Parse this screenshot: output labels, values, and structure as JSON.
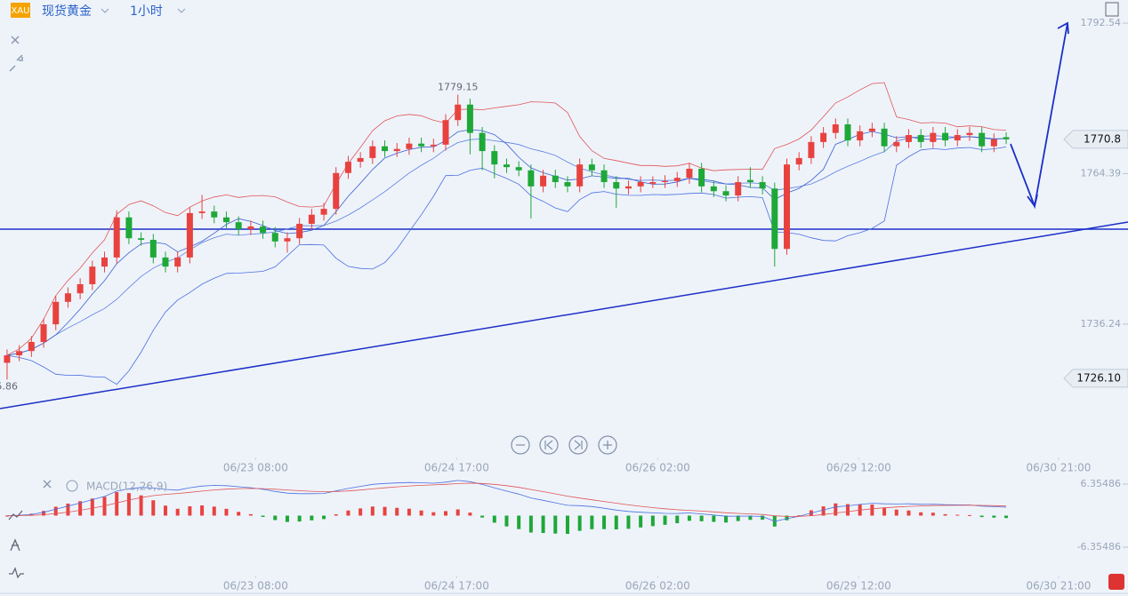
{
  "ui": {
    "symbol_badge": "XAU",
    "symbol": "现货黄金",
    "interval": "1小时"
  },
  "chart_data": {
    "type": "candlestick",
    "open": [
      1729,
      1730.4,
      1731.2,
      1732.9,
      1736.2,
      1740.4,
      1742,
      1743.7,
      1747,
      1748.7,
      1756.2,
      1752.3,
      1752,
      1748.7,
      1747,
      1748.7,
      1757,
      1757.3,
      1756.2,
      1755.3,
      1754,
      1754.5,
      1753.3,
      1751.7,
      1752.3,
      1755,
      1756.7,
      1757.8,
      1764.5,
      1766.6,
      1767.3,
      1769.5,
      1768.6,
      1769,
      1770,
      1769.5,
      1769.8,
      1774.4,
      1777.3,
      1772,
      1768.6,
      1766.1,
      1765.6,
      1765,
      1762,
      1764,
      1762.8,
      1762,
      1766.1,
      1765,
      1762.8,
      1761.6,
      1762,
      1762.5,
      1762.8,
      1763,
      1763.6,
      1765.3,
      1762,
      1761.1,
      1760.3,
      1763.2,
      1762.8,
      1761.6,
      1750.3,
      1766.1,
      1767.3,
      1770.3,
      1772,
      1773.6,
      1770.6,
      1772.3,
      1772.8,
      1769.5,
      1770.3,
      1771.6,
      1770.3,
      1772,
      1770.6,
      1771.6,
      1772,
      1769.5,
      1771.2
    ],
    "high": [
      1731.5,
      1732.3,
      1734,
      1737.3,
      1741.5,
      1743.1,
      1744.8,
      1748.1,
      1749.8,
      1757.5,
      1757.3,
      1753.4,
      1753.1,
      1749.8,
      1749.8,
      1758.1,
      1760.4,
      1758.4,
      1757.3,
      1756.4,
      1755.6,
      1755.6,
      1754.4,
      1753.4,
      1756.1,
      1757.8,
      1758.9,
      1765.6,
      1767.7,
      1768.4,
      1770.6,
      1770.6,
      1770.1,
      1771.1,
      1771.1,
      1770.9,
      1775.5,
      1779.15,
      1778.4,
      1773.1,
      1769.7,
      1767.2,
      1766.7,
      1766.1,
      1765.1,
      1765.1,
      1763.9,
      1767.2,
      1767.2,
      1766.1,
      1763.9,
      1763.1,
      1763.9,
      1763.9,
      1764.1,
      1764.7,
      1766.4,
      1766.4,
      1763.1,
      1762.2,
      1763.9,
      1765.6,
      1763.9,
      1762.7,
      1767.2,
      1768.4,
      1771.4,
      1773.1,
      1774.7,
      1774.7,
      1773.4,
      1773.9,
      1773.9,
      1771.4,
      1772.7,
      1772.7,
      1773.1,
      1773.1,
      1772.7,
      1773.1,
      1773.1,
      1771.9,
      1772.1
    ],
    "low": [
      1725.86,
      1729.3,
      1730.1,
      1731.8,
      1735.1,
      1739.3,
      1740.9,
      1742.6,
      1745.9,
      1747.6,
      1751.2,
      1750.9,
      1747.6,
      1745.9,
      1745.9,
      1747.6,
      1755.9,
      1755.1,
      1754.2,
      1752.9,
      1752.9,
      1752.2,
      1750.6,
      1749.6,
      1751.2,
      1753.9,
      1755.6,
      1756.7,
      1763.4,
      1765.5,
      1766.2,
      1767.5,
      1767.5,
      1767.9,
      1768.4,
      1768.4,
      1768.7,
      1773.3,
      1768,
      1765,
      1763.5,
      1764.5,
      1763.9,
      1756,
      1760.9,
      1761.7,
      1760.9,
      1760.9,
      1763.9,
      1761.7,
      1758,
      1760.5,
      1760.9,
      1761.7,
      1761.7,
      1761.9,
      1762.5,
      1760.9,
      1760,
      1759.2,
      1759.2,
      1761.7,
      1760.5,
      1747,
      1749.2,
      1765,
      1766.2,
      1769.2,
      1770.9,
      1769.5,
      1769.5,
      1771.2,
      1768.4,
      1768.4,
      1769.2,
      1769.2,
      1769.2,
      1769.5,
      1769.5,
      1770.5,
      1768.4,
      1768.4,
      1769.9
    ],
    "close": [
      1730.4,
      1731.2,
      1732.9,
      1736.2,
      1740.4,
      1742,
      1743.7,
      1747,
      1748.7,
      1756.2,
      1752.3,
      1752,
      1748.7,
      1747,
      1748.7,
      1757,
      1757.3,
      1756.2,
      1755.3,
      1754,
      1754.5,
      1753.3,
      1751.7,
      1752.3,
      1755,
      1756.7,
      1757.8,
      1764.5,
      1766.6,
      1767.3,
      1769.5,
      1768.6,
      1769,
      1770,
      1769.5,
      1769.8,
      1774.4,
      1777.3,
      1772,
      1768.6,
      1766.1,
      1765.6,
      1765,
      1762,
      1764,
      1762.8,
      1762,
      1766.1,
      1765,
      1762.8,
      1761.6,
      1762,
      1762.8,
      1762.8,
      1763,
      1763.6,
      1765.3,
      1762,
      1761.1,
      1760.3,
      1762.8,
      1762.8,
      1761.6,
      1750.3,
      1766.1,
      1767.3,
      1770.3,
      1772,
      1773.6,
      1770.6,
      1772.3,
      1772.8,
      1769.5,
      1770.3,
      1771.6,
      1770.3,
      1772,
      1770.6,
      1771.6,
      1772,
      1769.5,
      1770.8,
      1770.8
    ],
    "up_color": "#e8423f",
    "down_color": "#1ea838",
    "ylim": [
      1711.3,
      1796.86
    ],
    "yticks": [
      1792.54,
      1764.39,
      1736.24
    ],
    "xlim": [
      -0.58,
      92
    ],
    "xticks": [
      {
        "value": 20.4,
        "label": "06/23 08:00"
      },
      {
        "value": 36.9,
        "label": "06/24 17:00"
      },
      {
        "value": 53.4,
        "label": "06/26 02:00"
      },
      {
        "value": 69.9,
        "label": "06/29 12:00"
      },
      {
        "value": 86.3,
        "label": "06/30 21:00"
      }
    ],
    "price_tags": [
      1770.8,
      {
        "value": 1726.1,
        "label": "1726.10"
      }
    ],
    "macd": {
      "label": "MACD(12,26,9)",
      "ylim": [
        -6.35486,
        6.35486
      ],
      "yticks": [
        6.35486,
        -6.35486
      ]
    }
  }
}
